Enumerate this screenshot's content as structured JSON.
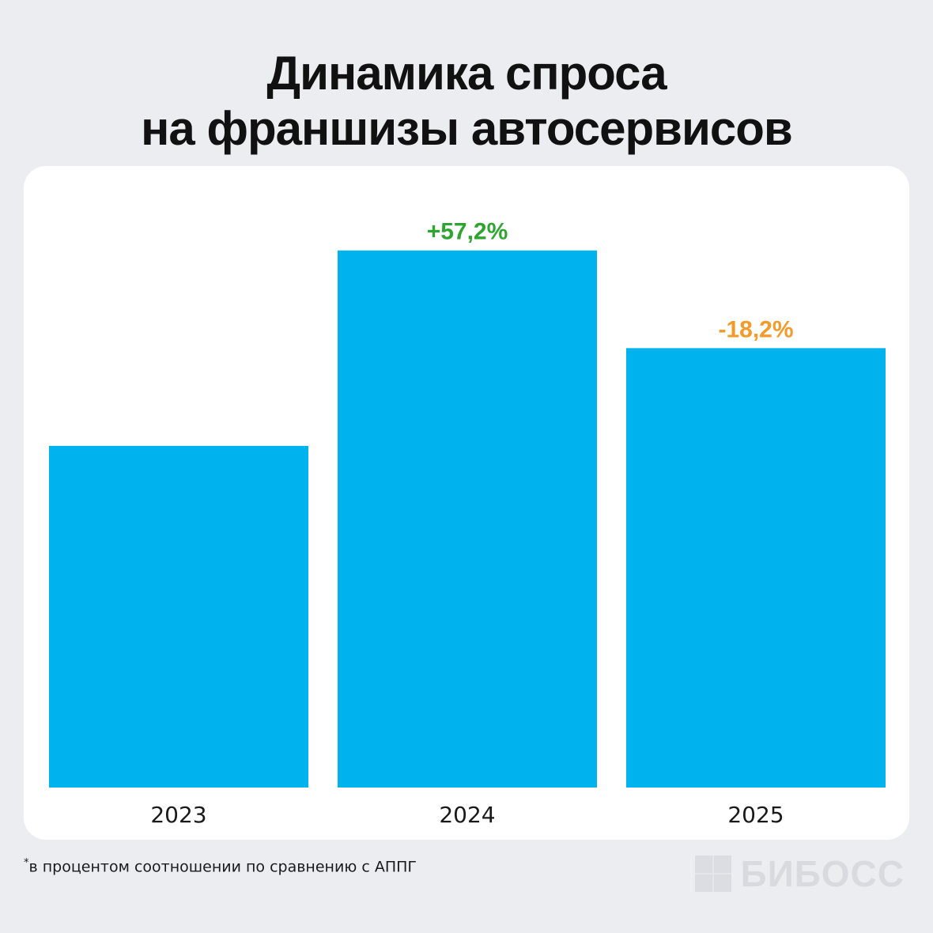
{
  "title_line1": "Динамика спроса",
  "title_line2": "на франшизы автосервисов",
  "footnote_mark": "*",
  "footnote": "в процентом соотношении по сравнению с АППГ",
  "logo_text": "БИБОСС",
  "colors": {
    "bar": "#00b3ee",
    "positive": "#2ea52e",
    "negative": "#f49a2a",
    "background": "#ecedf1",
    "card": "#ffffff"
  },
  "chart_data": {
    "type": "bar",
    "categories": [
      "2023",
      "2024",
      "2025"
    ],
    "values": [
      100,
      157.2,
      128.6
    ],
    "data_labels": [
      "",
      "+57,2%",
      "-18,2%"
    ],
    "label_colors": [
      "",
      "positive",
      "negative"
    ],
    "ylim": [
      0,
      162
    ]
  }
}
